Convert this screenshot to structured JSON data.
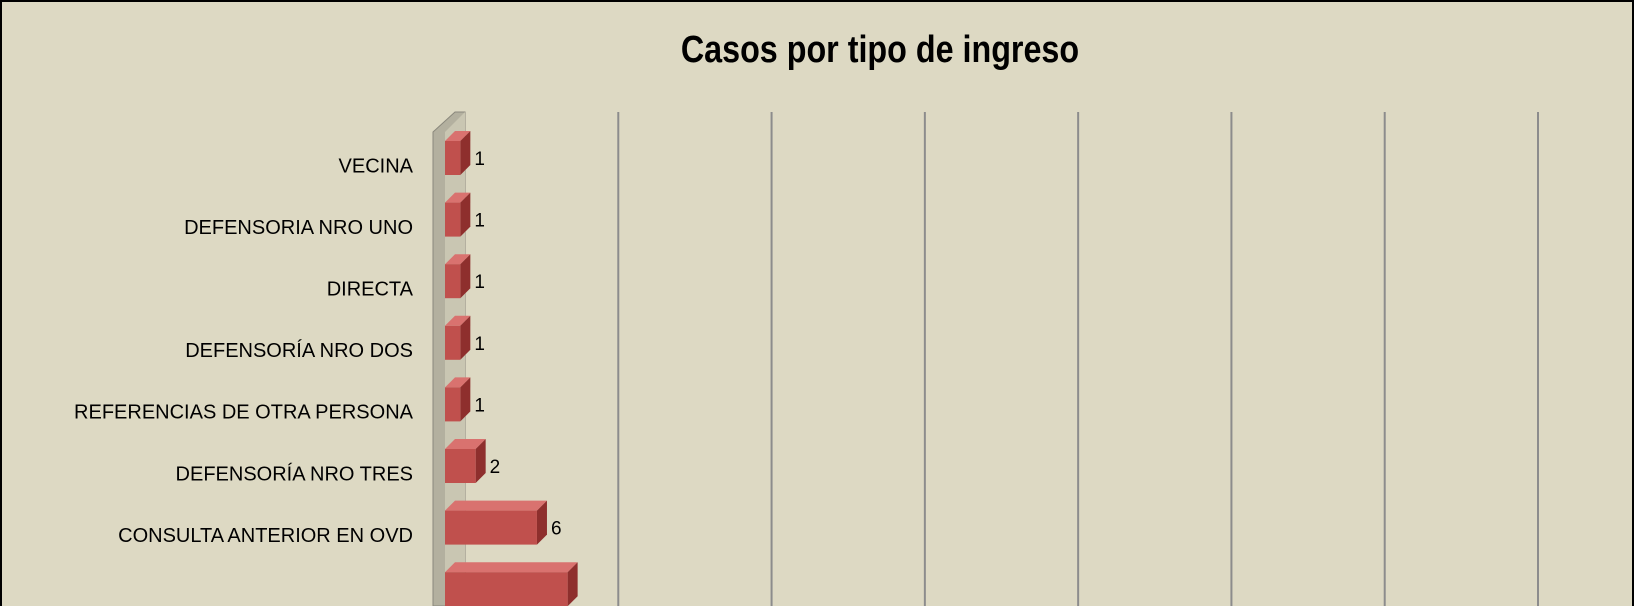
{
  "chart_data": {
    "type": "bar",
    "orientation": "horizontal",
    "title": "Casos por tipo de ingreso",
    "categories": [
      "VECINA",
      "DEFENSORIA NRO UNO",
      "DIRECTA",
      "DEFENSORÍA NRO DOS",
      "REFERENCIAS DE OTRA PERSONA",
      "DEFENSORÍA NRO TRES",
      "CONSULTA ANTERIOR EN OVD",
      null
    ],
    "values": [
      1,
      1,
      1,
      1,
      1,
      2,
      6,
      8
    ],
    "color": "#c0504d",
    "xlim": [
      0,
      70
    ],
    "xticks": [
      0,
      10,
      20,
      30,
      40,
      50,
      60,
      70
    ],
    "grid": true
  }
}
